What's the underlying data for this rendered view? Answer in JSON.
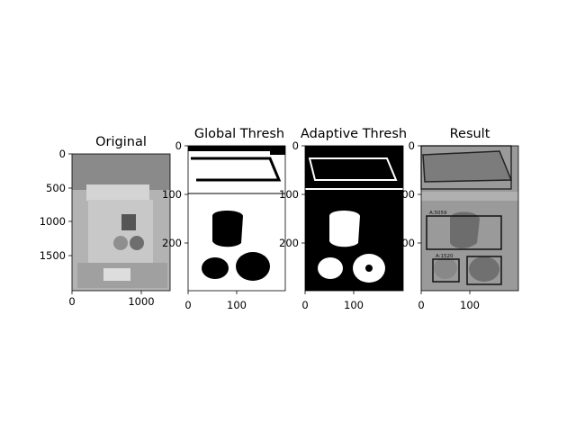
{
  "figure": {
    "background": "#ffffff"
  },
  "chart_data": [
    {
      "type": "image",
      "title": "Original",
      "colormap": "gray",
      "xlim": [
        0,
        1400
      ],
      "ylim": [
        1950,
        0
      ],
      "xticks": [
        0,
        1000
      ],
      "yticks": [
        0,
        500,
        1000,
        1500
      ],
      "image_description": "grayscale photo of a package on a light background"
    },
    {
      "type": "image",
      "title": "Global Thresh",
      "colormap": "binary",
      "xlim": [
        0,
        200
      ],
      "ylim": [
        290,
        0
      ],
      "xticks": [
        0,
        100
      ],
      "yticks": [
        0,
        100,
        200
      ],
      "image_description": "binary mask, mostly white with three dark blobs"
    },
    {
      "type": "image",
      "title": "Adaptive Thresh",
      "colormap": "binary",
      "xlim": [
        0,
        200
      ],
      "ylim": [
        290,
        0
      ],
      "xticks": [
        0,
        100
      ],
      "yticks": [
        0,
        100,
        200
      ],
      "image_description": "binary mask, mostly black with three white blobs"
    },
    {
      "type": "image",
      "title": "Result",
      "colormap": "gray",
      "xlim": [
        0,
        200
      ],
      "ylim": [
        290,
        0
      ],
      "xticks": [
        0,
        100
      ],
      "yticks": [
        0,
        100,
        200
      ],
      "annotations": [
        "A:5059",
        "A:1520"
      ],
      "image_description": "grayscale image with black bounding boxes drawn around detected regions"
    }
  ]
}
